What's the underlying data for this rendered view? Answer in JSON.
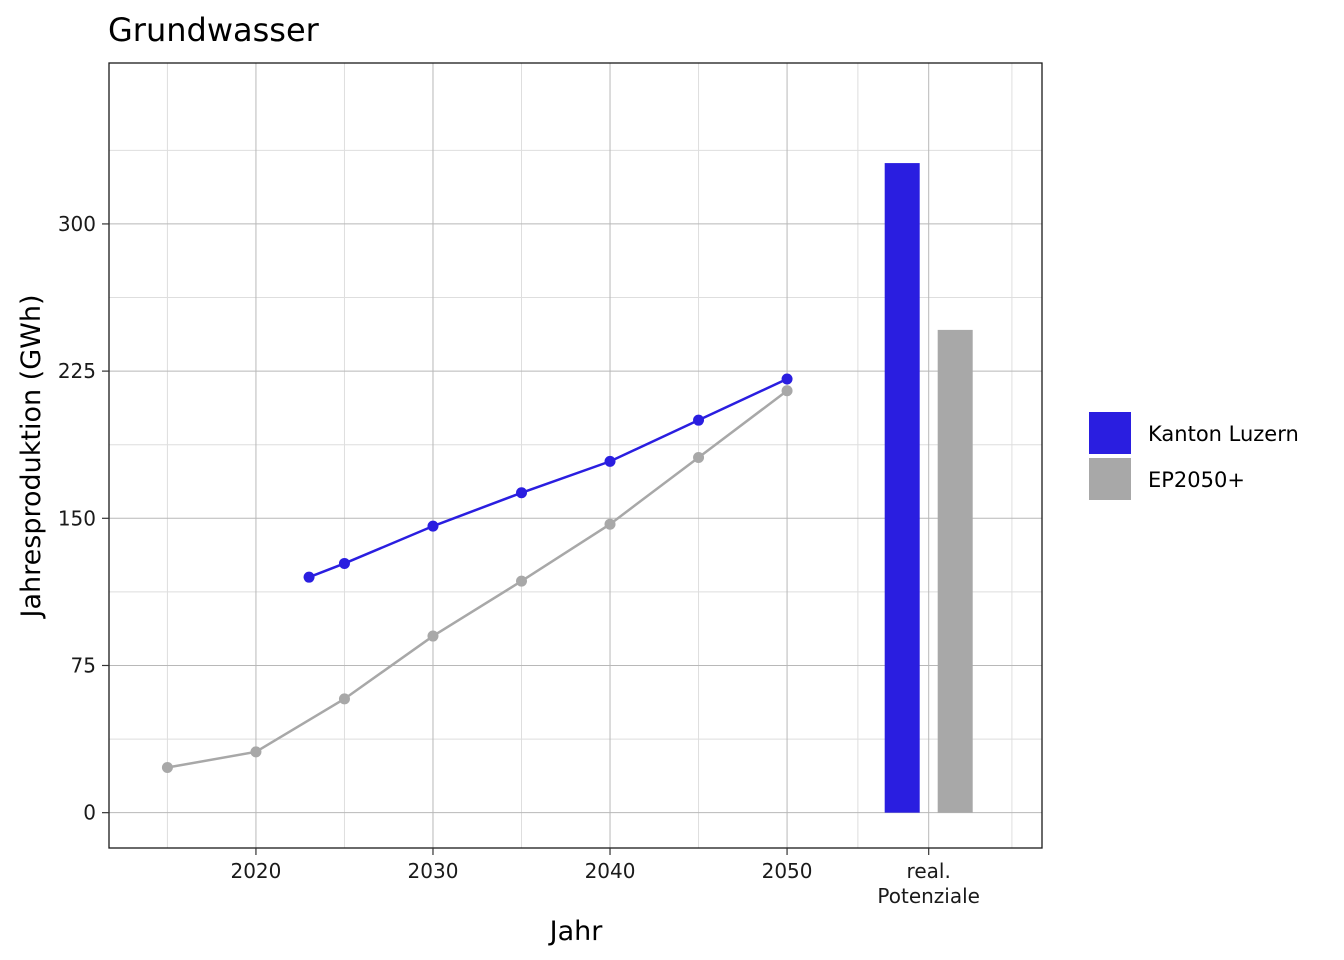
{
  "chart_data": {
    "type": "line",
    "title": "Grundwasser",
    "xlabel": "Jahr",
    "ylabel": "Jahresproduktion (GWh)",
    "ylim": [
      -18,
      382
    ],
    "yticks": [
      0,
      75,
      150,
      225,
      300
    ],
    "xticks": [
      {
        "value": 2020,
        "label": "2020"
      },
      {
        "value": 2030,
        "label": "2030"
      },
      {
        "value": 2040,
        "label": "2040"
      },
      {
        "value": 2050,
        "label": "2050"
      },
      {
        "value": 2058,
        "label_lines": [
          "real.",
          "Potenziale"
        ]
      }
    ],
    "grid": true,
    "legend_position": "right",
    "series": [
      {
        "name": "Kanton Luzern",
        "color": "#2a1ee0",
        "x": [
          2023,
          2025,
          2030,
          2035,
          2040,
          2045,
          2050
        ],
        "values": [
          120,
          127,
          146,
          163,
          179,
          200,
          221
        ]
      },
      {
        "name": "EP2050+",
        "color": "#a8a8a8",
        "x": [
          2015,
          2020,
          2025,
          2030,
          2035,
          2040,
          2045,
          2050
        ],
        "values": [
          23,
          31,
          58,
          90,
          118,
          147,
          181,
          215
        ]
      }
    ],
    "bars": {
      "category": "real. Potenziale",
      "items": [
        {
          "series": "Kanton Luzern",
          "value": 331
        },
        {
          "series": "EP2050+",
          "value": 246
        }
      ]
    }
  }
}
